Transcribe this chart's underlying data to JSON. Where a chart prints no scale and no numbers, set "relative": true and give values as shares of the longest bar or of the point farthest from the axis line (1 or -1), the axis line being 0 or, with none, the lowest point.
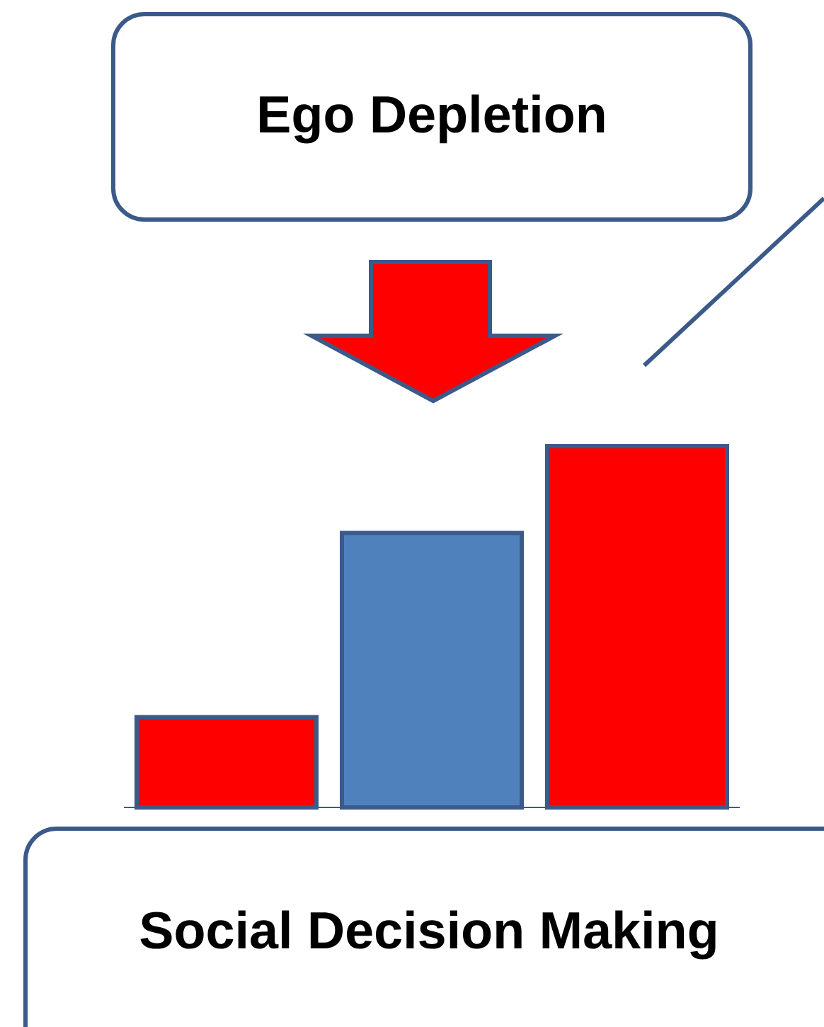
{
  "chart_data": {
    "type": "bar",
    "title": "Ego Depletion",
    "xlabel": "Social Decision Making",
    "relative": true,
    "categories": [
      null,
      null,
      null
    ],
    "values": [
      0.25,
      0.76,
      1
    ],
    "colors": [
      "#ff0000",
      "#4f81bd",
      "#ff0000"
    ]
  }
}
